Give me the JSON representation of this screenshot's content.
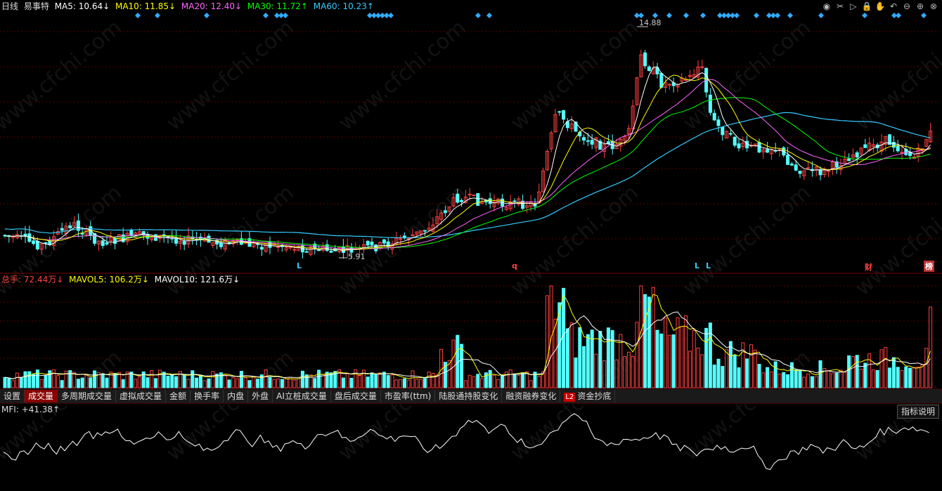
{
  "header": {
    "period": "日线",
    "stock": "易事特",
    "ma5": "MA5: 10.64↓",
    "ma10": "MA10: 11.85↓",
    "ma20": "MA20: 12.40↓",
    "ma30": "MA30: 11.72↑",
    "ma60": "MA60: 10.23↑"
  },
  "price": {
    "high_label": "14.88",
    "low_label": "5.91",
    "markers": [
      "L",
      "q",
      "L",
      "L",
      "财",
      "榜"
    ]
  },
  "volume": {
    "total": "总手: 72.44万↓",
    "mavol5": "MAVOL5: 106.2万↓",
    "mavol10": "MAVOL10: 121.6万↓"
  },
  "tabs": [
    "设置",
    "成交量",
    "多周期成交量",
    "虚拟成交量",
    "金额",
    "换手率",
    "内盘",
    "外盘",
    "AI立桩成交量",
    "盘后成交量",
    "市盈率(ttm)",
    "陆股通持股变化",
    "融资融券变化",
    "资金抄底"
  ],
  "tab_badge": "L2",
  "mfi": {
    "label": "MFI: +41.38↑",
    "explain": "指标说明"
  },
  "watermark": "www.cfchi.com",
  "colors": {
    "up": "#ff4040",
    "down": "#54ffff",
    "ma5": "#ffffff",
    "ma10": "#ffff00",
    "ma20": "#ff66ff",
    "ma30": "#00ff00",
    "ma60": "#33ccff"
  },
  "chart_data": [
    {
      "type": "candlestick",
      "title": "易事特 日线",
      "series": [
        {
          "name": "MA5",
          "value": 10.64
        },
        {
          "name": "MA10",
          "value": 11.85
        },
        {
          "name": "MA20",
          "value": 12.4
        },
        {
          "name": "MA30",
          "value": 11.72
        },
        {
          "name": "MA60",
          "value": 10.23
        }
      ],
      "annotations": [
        {
          "text": "14.88",
          "type": "high"
        },
        {
          "text": "5.91",
          "type": "low"
        }
      ]
    },
    {
      "type": "bar",
      "title": "成交量",
      "series": [
        {
          "name": "总手",
          "value": "72.44万"
        },
        {
          "name": "MAVOL5",
          "value": "106.2万"
        },
        {
          "name": "MAVOL10",
          "value": "121.6万"
        }
      ]
    },
    {
      "type": "line",
      "title": "MFI",
      "series": [
        {
          "name": "MFI",
          "value": 41.38
        }
      ]
    }
  ]
}
